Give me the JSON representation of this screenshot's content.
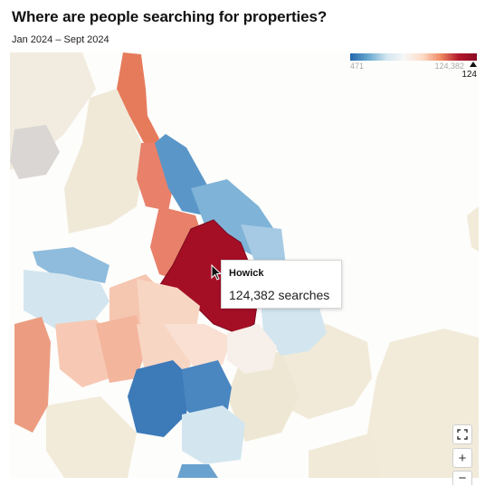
{
  "header": {
    "title": "Where are people searching for properties?",
    "subtitle": "Jan 2024 – Sept 2024"
  },
  "legend": {
    "min_label": "471",
    "max_label": "124,382",
    "current_label": "124",
    "scale_colors": [
      "#2166ac",
      "#67a9cf",
      "#d1e5f0",
      "#f7f7f7",
      "#fddbc7",
      "#ef8a62",
      "#b2182b",
      "#8b0a24"
    ]
  },
  "tooltip": {
    "region": "Howick",
    "value_text": "124,382 searches"
  },
  "controls": {
    "fullscreen_icon": "fullscreen-icon",
    "zoom_in_label": "+",
    "zoom_out_label": "−"
  },
  "colors": {
    "highlight": "#a50f26",
    "land_neutral": "#f1ead8",
    "water": "#fdfdfb"
  }
}
